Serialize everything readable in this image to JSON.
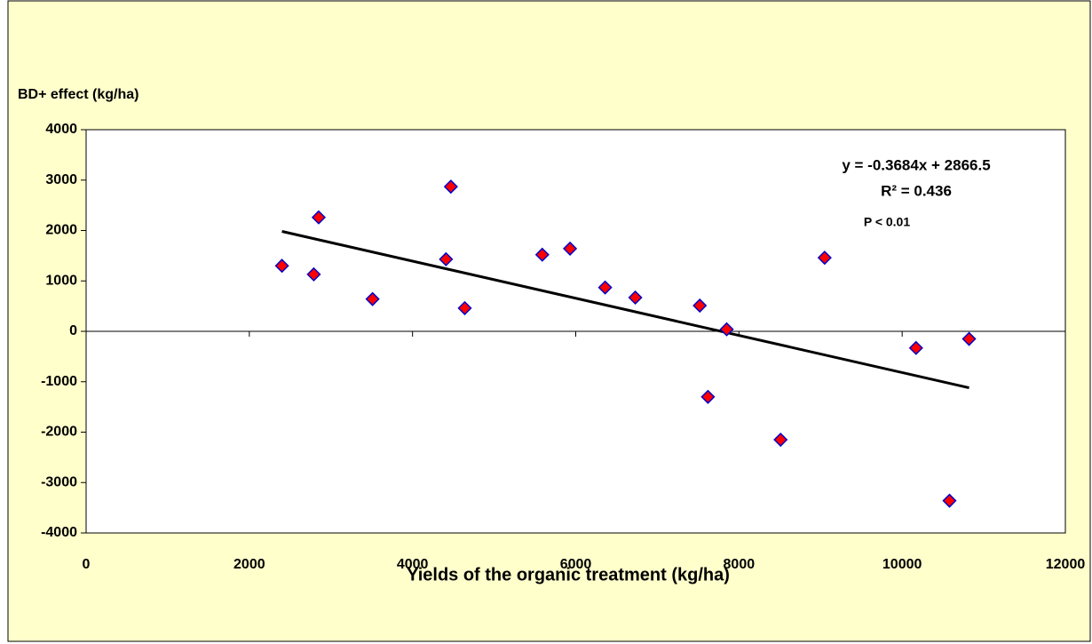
{
  "chart_data": {
    "type": "scatter",
    "y_label": "BD+ effect (kg/ha)",
    "x_label": "Yields of the organic treatment (kg/ha)",
    "annotations": [
      "y = -0.3684x + 2866.5",
      "R² = 0.436",
      "P < 0.01"
    ],
    "x": [
      2400,
      2790,
      2850,
      3510,
      4410,
      4470,
      4640,
      5590,
      5930,
      6360,
      6730,
      7520,
      7620,
      7850,
      8510,
      9050,
      10170,
      10580,
      10820
    ],
    "values": [
      1300,
      1130,
      2260,
      640,
      1430,
      2870,
      460,
      1520,
      1640,
      870,
      670,
      510,
      -1300,
      40,
      -2150,
      1460,
      -330,
      -3360,
      -150
    ],
    "color": "#ff0000",
    "edge_color": "#0000cc",
    "trendline": {
      "x": [
        2400,
        10820
      ],
      "values": [
        1982,
        -1120
      ],
      "color": "#000000"
    },
    "xlim": [
      0,
      12000
    ],
    "xticks": [
      0,
      2000,
      4000,
      6000,
      8000,
      10000,
      12000
    ],
    "ylim": [
      -4000,
      4000
    ],
    "yticks": [
      -4000,
      -3000,
      -2000,
      -1000,
      0,
      1000,
      2000,
      3000,
      4000
    ],
    "grid": false
  }
}
